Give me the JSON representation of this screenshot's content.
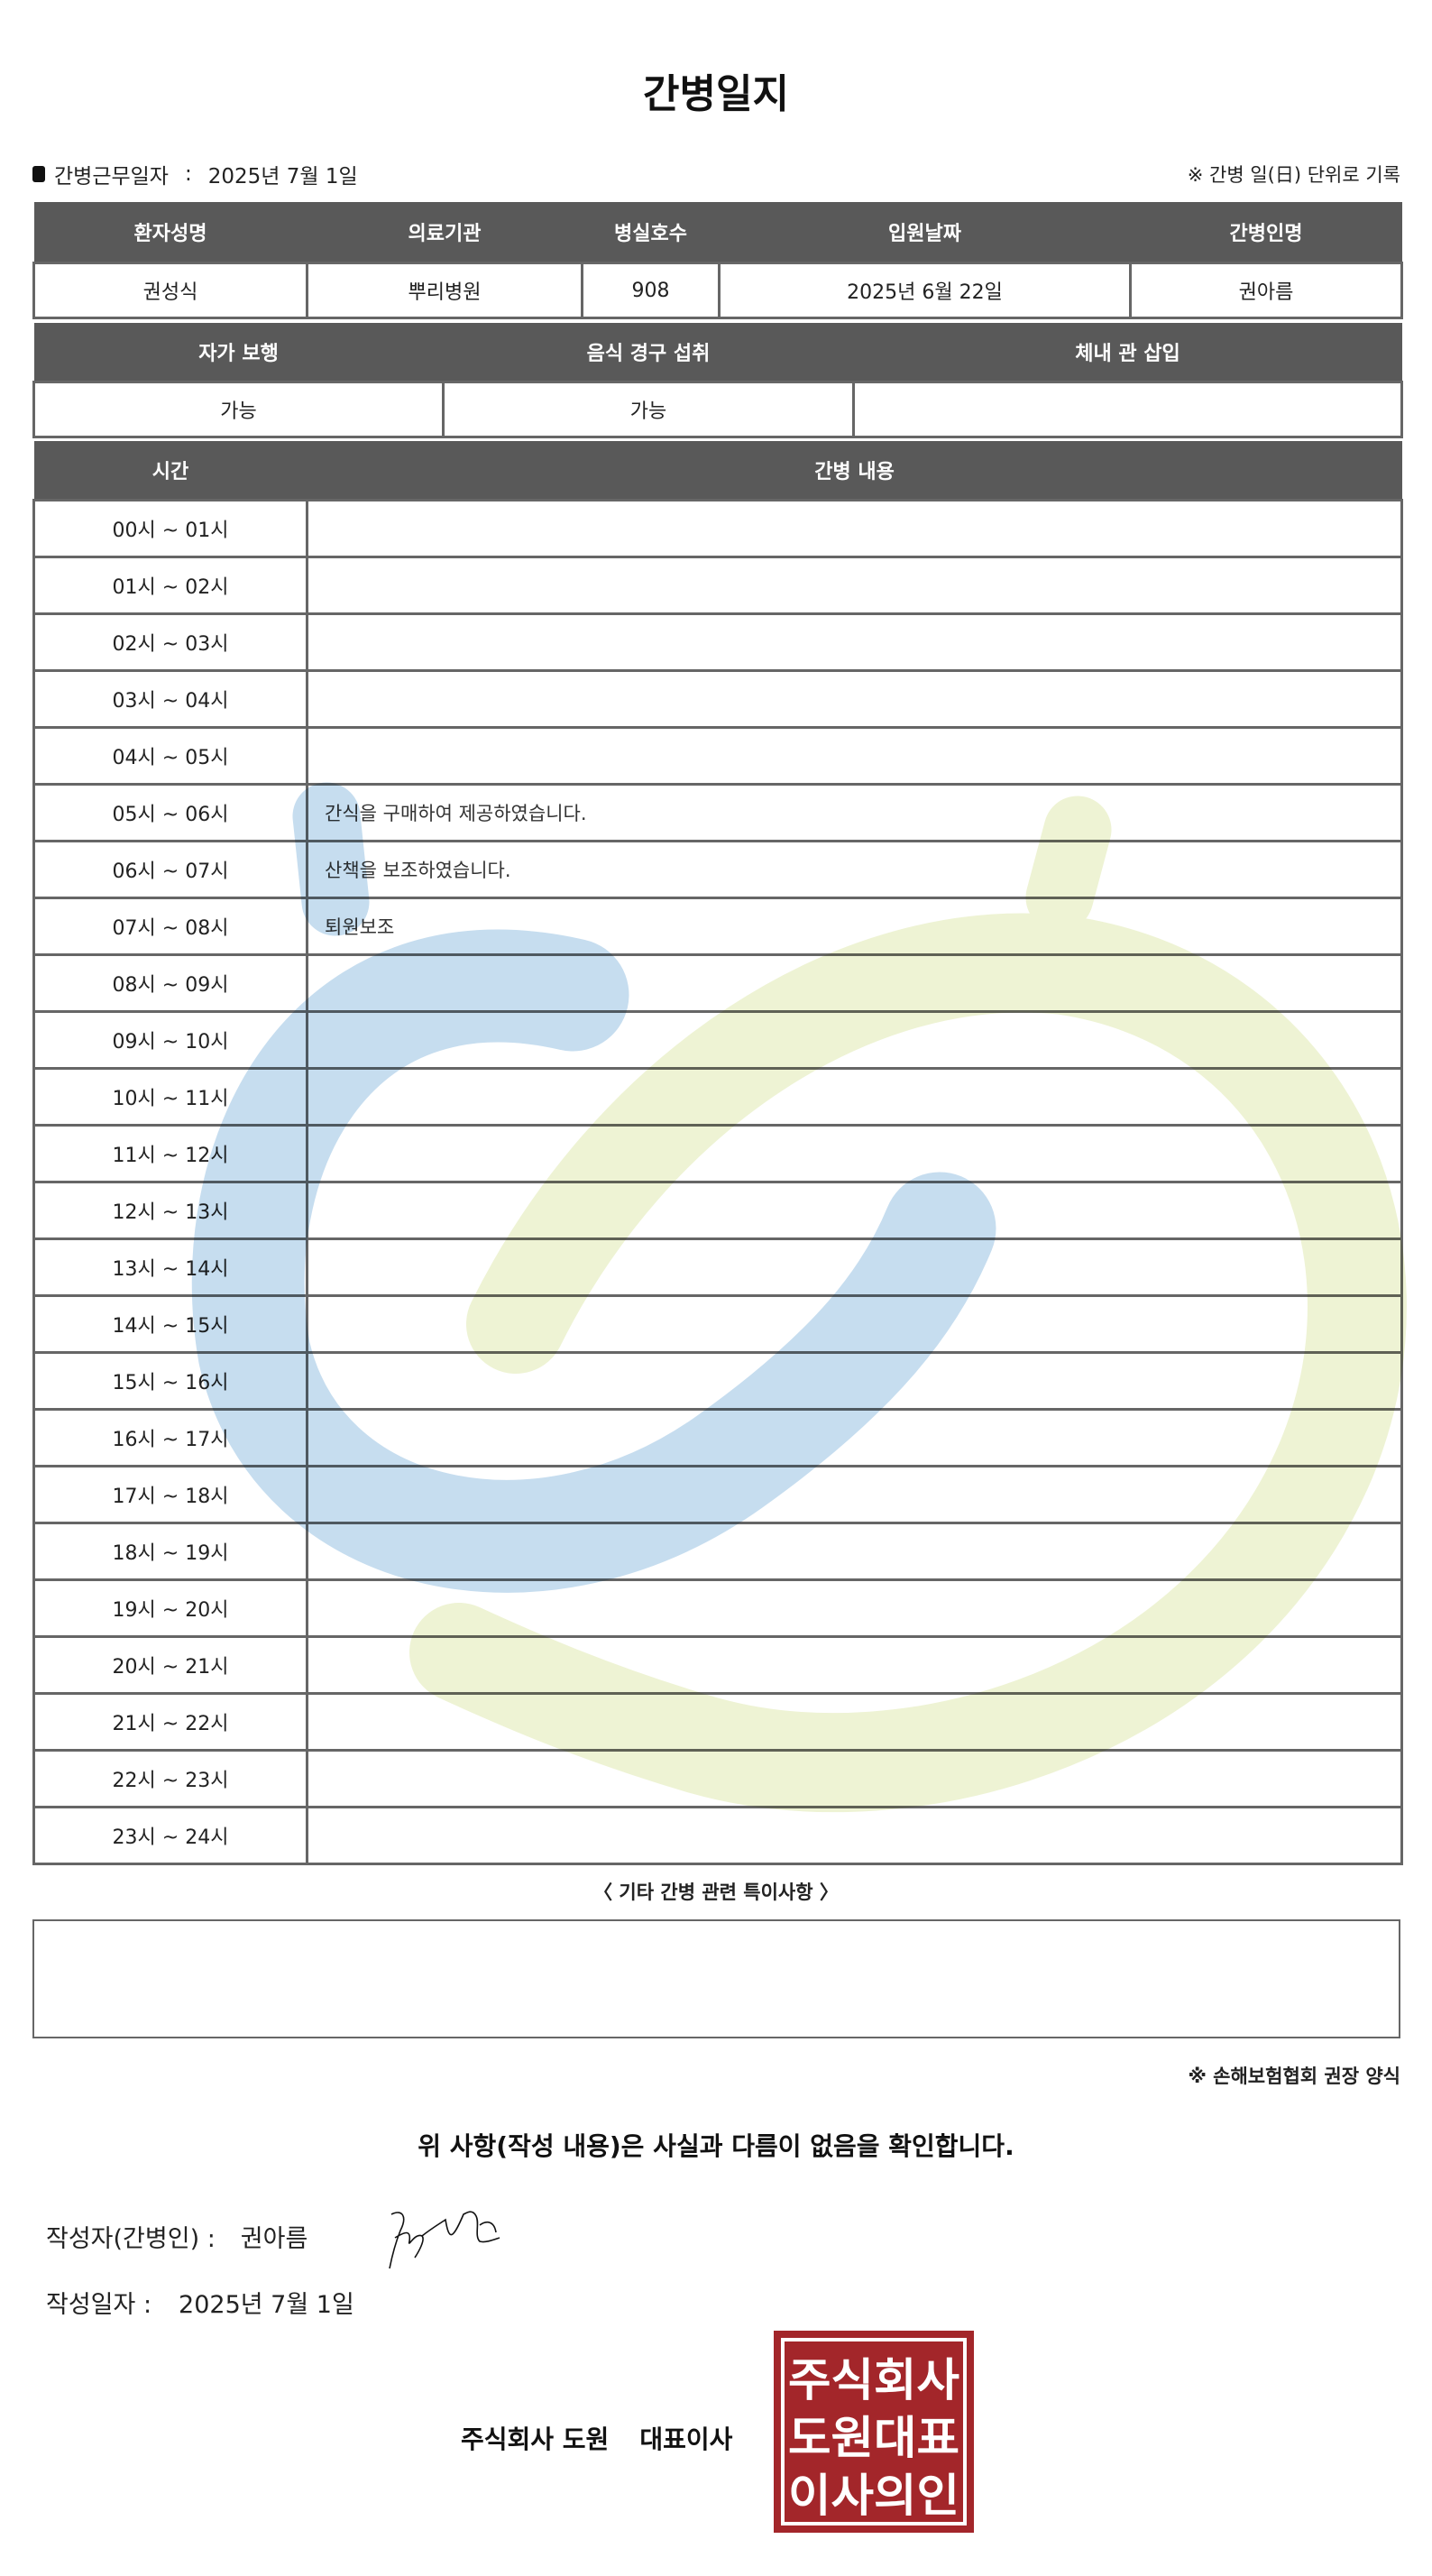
{
  "title": "간병일지",
  "work_date": {
    "label": "간병근무일자",
    "separator": ":",
    "value": "2025년 7월 1일"
  },
  "note_top": "※ 간병 일(日) 단위로 기록",
  "patient_table": {
    "headers": [
      "환자성명",
      "의료기관",
      "병실호수",
      "입원날짜",
      "간병인명"
    ],
    "values": [
      "권성식",
      "뿌리병원",
      "908",
      "2025년 6월 22일",
      "권아름"
    ]
  },
  "status_table": {
    "headers": [
      "자가 보행",
      "음식 경구 섭취",
      "체내 관 삽입"
    ],
    "values": [
      "가능",
      "가능",
      ""
    ]
  },
  "log_table": {
    "headers": [
      "시간",
      "간병 내용"
    ],
    "rows": [
      {
        "time": "00시 ~ 01시",
        "content": ""
      },
      {
        "time": "01시 ~ 02시",
        "content": ""
      },
      {
        "time": "02시 ~ 03시",
        "content": ""
      },
      {
        "time": "03시 ~ 04시",
        "content": ""
      },
      {
        "time": "04시 ~ 05시",
        "content": ""
      },
      {
        "time": "05시 ~ 06시",
        "content": "간식을 구매하여 제공하였습니다."
      },
      {
        "time": "06시 ~ 07시",
        "content": "산책을 보조하였습니다."
      },
      {
        "time": "07시 ~ 08시",
        "content": "퇴원보조"
      },
      {
        "time": "08시 ~ 09시",
        "content": ""
      },
      {
        "time": "09시 ~ 10시",
        "content": ""
      },
      {
        "time": "10시 ~ 11시",
        "content": ""
      },
      {
        "time": "11시 ~ 12시",
        "content": ""
      },
      {
        "time": "12시 ~ 13시",
        "content": ""
      },
      {
        "time": "13시 ~ 14시",
        "content": ""
      },
      {
        "time": "14시 ~ 15시",
        "content": ""
      },
      {
        "time": "15시 ~ 16시",
        "content": ""
      },
      {
        "time": "16시 ~ 17시",
        "content": ""
      },
      {
        "time": "17시 ~ 18시",
        "content": ""
      },
      {
        "time": "18시 ~ 19시",
        "content": ""
      },
      {
        "time": "19시 ~ 20시",
        "content": ""
      },
      {
        "time": "20시 ~ 21시",
        "content": ""
      },
      {
        "time": "21시 ~ 22시",
        "content": ""
      },
      {
        "time": "22시 ~ 23시",
        "content": ""
      },
      {
        "time": "23시 ~ 24시",
        "content": ""
      }
    ]
  },
  "etc": {
    "label": "〈 기타 간병 관련 특이사항 〉",
    "value": ""
  },
  "note_bottom": "※ 손해보험협회 권장 양식",
  "confirmation": "위 사항(작성 내용)은 사실과 다름이 없음을 확인합니다.",
  "writer": {
    "label": "작성자(간병인) :",
    "value": "권아름"
  },
  "written_date": {
    "label": "작성일자 :",
    "value": "2025년 7월 1일"
  },
  "company": {
    "name": "주식회사 도원",
    "title": "대표이사"
  },
  "seal": {
    "lines": [
      "주식회사",
      "도원대표",
      "이사의인"
    ],
    "color": "#a3262a"
  },
  "colors": {
    "header_bg": "#595959",
    "watermark_blue": "#c6ddef",
    "watermark_green": "#eef3d4"
  }
}
